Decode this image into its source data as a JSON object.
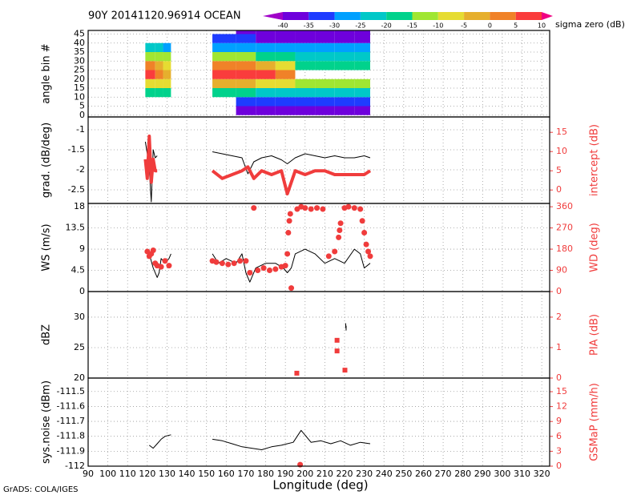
{
  "chart_data": [
    {
      "type": "heatmap",
      "title": "90Y 20141120.96914 OCEAN",
      "ylabel": "angle bin #",
      "ylim": [
        -1,
        47
      ],
      "yticks": [
        0,
        5,
        10,
        15,
        20,
        25,
        30,
        35,
        40,
        45
      ],
      "colorbar": {
        "label": "sigma zero (dB)",
        "levels": [
          -40,
          -35,
          -30,
          -25,
          -20,
          -15,
          -10,
          -5,
          0,
          5,
          10
        ],
        "colors": [
          "#a000c8",
          "#6e00dc",
          "#1e3cff",
          "#00a0ff",
          "#00c8c8",
          "#00d28c",
          "#a0e632",
          "#e6dc32",
          "#e6af2d",
          "#f08228",
          "#fa3c3c",
          "#f00082"
        ]
      },
      "x_edges": [
        119,
        124,
        128,
        132,
        153,
        165,
        175,
        185,
        195,
        205,
        215,
        225,
        233
      ],
      "y_edges": [
        0,
        5,
        10,
        15,
        20,
        25,
        30,
        35,
        40,
        45,
        47
      ],
      "values": [
        [
          null,
          null,
          null,
          null,
          null,
          -40,
          -40,
          -40,
          -40,
          -40,
          -40,
          -40
        ],
        [
          null,
          null,
          null,
          null,
          null,
          -35,
          -35,
          -35,
          -35,
          -35,
          -35,
          -35
        ],
        [
          -20,
          -20,
          -20,
          null,
          -20,
          -20,
          -25,
          -25,
          -25,
          -25,
          -25,
          -25
        ],
        [
          -10,
          -10,
          -10,
          null,
          -5,
          -5,
          -10,
          -10,
          -15,
          -15,
          -15,
          -15
        ],
        [
          5,
          0,
          -5,
          null,
          5,
          5,
          5,
          0,
          null,
          null,
          null,
          null
        ],
        [
          0,
          -5,
          -10,
          null,
          0,
          0,
          -5,
          -10,
          -20,
          -20,
          -20,
          -20
        ],
        [
          -15,
          -15,
          -15,
          null,
          -15,
          -15,
          -20,
          -20,
          -25,
          -25,
          -25,
          -25
        ],
        [
          -25,
          -25,
          -30,
          null,
          -30,
          -30,
          -30,
          -30,
          -30,
          -30,
          -30,
          -30
        ],
        [
          null,
          null,
          null,
          null,
          -35,
          -35,
          -40,
          -40,
          -40,
          -40,
          -40,
          -40
        ],
        [
          null,
          null,
          null,
          null,
          null,
          -40,
          -40,
          -40,
          -40,
          -40,
          -40,
          -40
        ]
      ]
    },
    {
      "type": "line",
      "ylabel": "grad. (dB/deg)",
      "y2label": "intercept (dB)",
      "ylim": [
        -2.84,
        -0.68
      ],
      "yticks": [
        -1,
        -1.5,
        -2,
        -2.5
      ],
      "y2lim": [
        -3.5,
        19
      ],
      "y2ticks": [
        0,
        5,
        10,
        15
      ],
      "series": [
        {
          "color": "#000000",
          "width": 1,
          "x": [
            119,
            120,
            121,
            122,
            123,
            124,
            125,
            140,
            153,
            158,
            163,
            168,
            171,
            174,
            178,
            183,
            188,
            191,
            195,
            200,
            205,
            210,
            215,
            220,
            225,
            230,
            233
          ],
          "values": [
            -1.3,
            -1.6,
            -2.0,
            -2.8,
            -1.5,
            -1.7,
            -1.65,
            null,
            -1.55,
            -1.6,
            -1.65,
            -1.7,
            -2.1,
            -1.8,
            -1.7,
            -1.65,
            -1.75,
            -1.85,
            -1.7,
            -1.6,
            -1.65,
            -1.7,
            -1.65,
            -1.7,
            -1.7,
            -1.65,
            -1.7
          ]
        },
        {
          "color": "#f03c3c",
          "width": 4,
          "axis": "y2",
          "x": [
            119,
            120,
            121,
            122,
            123,
            124,
            125,
            140,
            153,
            158,
            163,
            168,
            171,
            174,
            178,
            183,
            188,
            191,
            195,
            200,
            205,
            210,
            215,
            220,
            225,
            230,
            233
          ],
          "values": [
            8,
            3,
            14,
            2,
            8,
            5,
            5,
            null,
            5,
            3,
            4,
            5,
            6,
            3,
            5,
            4,
            5,
            -1,
            5,
            4,
            5,
            5,
            4,
            4,
            4,
            4,
            5
          ]
        }
      ]
    },
    {
      "type": "line",
      "ylabel": "WS (m/s)",
      "y2label": "WD (deg)",
      "ylim": [
        0,
        18.7
      ],
      "yticks": [
        0,
        4.5,
        9,
        13.5,
        18
      ],
      "y2lim": [
        0,
        374
      ],
      "y2ticks": [
        0,
        90,
        180,
        270,
        360
      ],
      "series": [
        {
          "color": "#000000",
          "width": 1,
          "x": [
            121,
            123,
            125,
            126,
            127,
            129,
            131,
            132,
            140,
            153,
            156,
            160,
            165,
            168,
            170,
            172,
            175,
            180,
            185,
            189,
            191,
            193,
            195,
            200,
            205,
            210,
            215,
            220,
            225,
            228,
            230,
            233
          ],
          "values": [
            8,
            5,
            3,
            4,
            7,
            6,
            7,
            8,
            null,
            8,
            6,
            7,
            6,
            8,
            4,
            2,
            5,
            6,
            6,
            5,
            4,
            5,
            8,
            9,
            8,
            6,
            7,
            6,
            9,
            8,
            5,
            6
          ]
        },
        {
          "color": "#f03c3c",
          "axis": "y2",
          "marker": "dot",
          "x": [
            120,
            121,
            122,
            123,
            124,
            125,
            127,
            129,
            131,
            153,
            155,
            158,
            161,
            164,
            167,
            170,
            172,
            174,
            176,
            179,
            182,
            185,
            188,
            190,
            191,
            191.5,
            192,
            192.5,
            193,
            196,
            198,
            200,
            203,
            206,
            209,
            212,
            215,
            217,
            217.5,
            218,
            220,
            222,
            225,
            228,
            229,
            230,
            231,
            232,
            233
          ],
          "values": [
            170,
            150,
            160,
            175,
            120,
            110,
            105,
            130,
            110,
            130,
            125,
            120,
            115,
            120,
            130,
            130,
            80,
            355,
            90,
            100,
            90,
            95,
            105,
            110,
            160,
            250,
            300,
            330,
            15,
            350,
            360,
            355,
            350,
            355,
            350,
            150,
            170,
            230,
            260,
            290,
            355,
            360,
            355,
            350,
            300,
            250,
            200,
            170,
            150
          ]
        }
      ]
    },
    {
      "type": "scatter",
      "ylabel": "dBZ",
      "y2label": "PIA (dB)",
      "ylim": [
        20,
        34.2
      ],
      "yticks": [
        20,
        25,
        30
      ],
      "y2lim": [
        0,
        2.84
      ],
      "y2ticks": [
        0,
        1,
        2
      ],
      "series": [
        {
          "color": "#000000",
          "marker": "tick",
          "x": [
            220.6,
            220.8
          ],
          "values": [
            28.6,
            28.2
          ]
        },
        {
          "color": "#f03c3c",
          "axis": "y2",
          "marker": "square",
          "x": [
            195.8,
            216.2,
            216.2,
            220.2
          ],
          "values": [
            0.16,
            1.24,
            0.89,
            0.26
          ]
        }
      ]
    },
    {
      "type": "line",
      "ylabel": "sys.noise (dBm)",
      "y2label": "GSMaP (mm/h)",
      "ylim": [
        -112,
        -111.41
      ],
      "yticks": [
        -112,
        -111.9,
        -111.8,
        -111.7,
        -111.6,
        -111.5
      ],
      "y2lim": [
        0,
        17.74
      ],
      "y2ticks": [
        0,
        3,
        6,
        9,
        12,
        15
      ],
      "xlabel": "Longitude (deg)",
      "xlim": [
        90,
        324
      ],
      "xticks": [
        90,
        100,
        110,
        120,
        130,
        140,
        150,
        160,
        170,
        180,
        190,
        200,
        210,
        220,
        230,
        240,
        250,
        260,
        270,
        280,
        290,
        300,
        310,
        320
      ],
      "series": [
        {
          "color": "#000000",
          "width": 1,
          "x": [
            121,
            123,
            125,
            127,
            129,
            132,
            140,
            153,
            158,
            163,
            168,
            173,
            178,
            183,
            188,
            191,
            194,
            198,
            203,
            208,
            213,
            218,
            223,
            228,
            233
          ],
          "values": [
            -111.86,
            -111.88,
            -111.85,
            -111.82,
            -111.8,
            -111.79,
            null,
            -111.82,
            -111.83,
            -111.85,
            -111.87,
            -111.88,
            -111.89,
            -111.87,
            -111.86,
            -111.85,
            -111.84,
            -111.76,
            -111.84,
            -111.83,
            -111.85,
            -111.83,
            -111.86,
            -111.84,
            -111.85
          ]
        },
        {
          "color": "#f03c3c",
          "axis": "y2",
          "marker": "dot",
          "x": [
            197.5
          ],
          "values": [
            0.3
          ]
        }
      ]
    }
  ],
  "footer": "GrADS: COLA/IGES"
}
